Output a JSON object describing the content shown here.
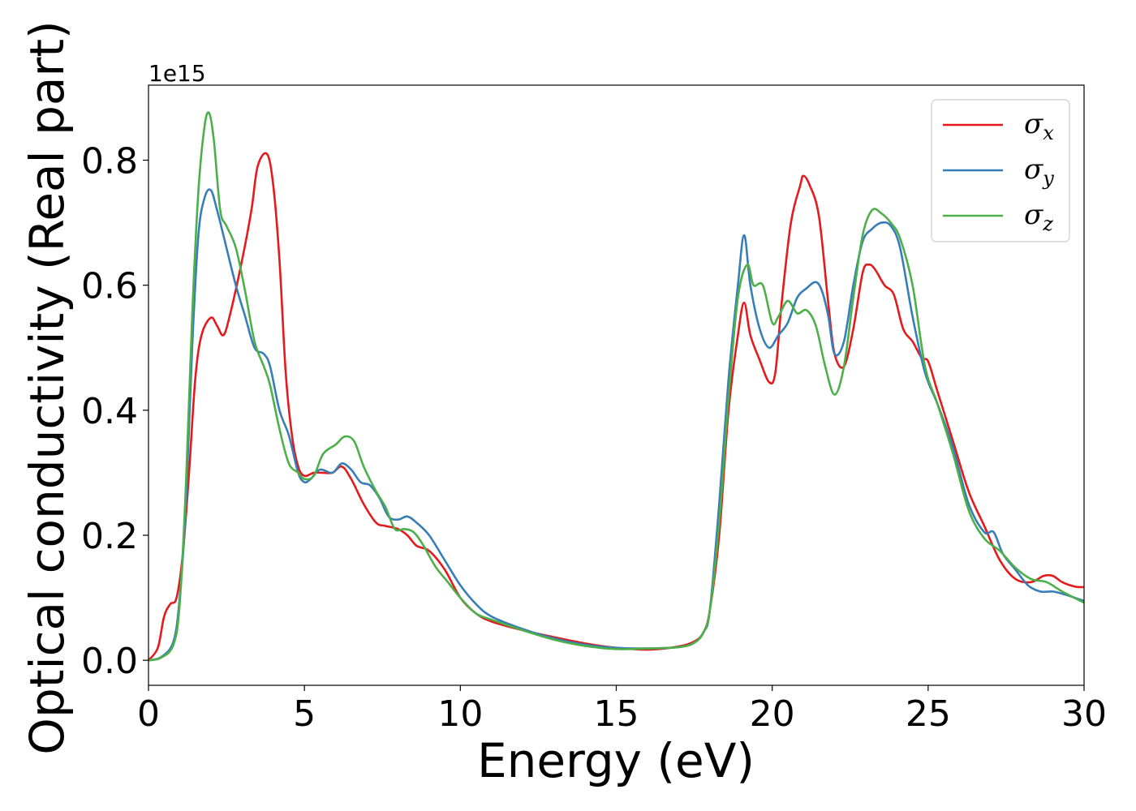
{
  "chart_data": {
    "type": "line",
    "title": "",
    "xlabel": "Energy (eV)",
    "ylabel": "Optical conductivity (Real part)",
    "y_offset_label": "1e15",
    "xlim": [
      0,
      30
    ],
    "ylim": [
      -0.04,
      0.92
    ],
    "x_ticks": [
      0,
      5,
      10,
      15,
      20,
      25,
      30
    ],
    "x_tick_labels": [
      "0",
      "5",
      "10",
      "15",
      "20",
      "25",
      "30"
    ],
    "y_ticks": [
      0.0,
      0.2,
      0.4,
      0.6,
      0.8
    ],
    "y_tick_labels": [
      "0.0",
      "0.2",
      "0.4",
      "0.6",
      "0.8"
    ],
    "grid": false,
    "legend_position": "top-right",
    "series": [
      {
        "name": "σx",
        "symbol": "σ",
        "subscript": "x",
        "color": "#e41a1c",
        "points": [
          [
            0,
            0
          ],
          [
            0.3,
            0.02
          ],
          [
            0.5,
            0.07
          ],
          [
            0.7,
            0.09
          ],
          [
            0.9,
            0.1
          ],
          [
            1.1,
            0.17
          ],
          [
            1.3,
            0.3
          ],
          [
            1.5,
            0.45
          ],
          [
            1.7,
            0.52
          ],
          [
            2.0,
            0.548
          ],
          [
            2.2,
            0.535
          ],
          [
            2.4,
            0.52
          ],
          [
            2.6,
            0.55
          ],
          [
            3.0,
            0.64
          ],
          [
            3.3,
            0.72
          ],
          [
            3.5,
            0.79
          ],
          [
            3.8,
            0.81
          ],
          [
            4.0,
            0.76
          ],
          [
            4.2,
            0.64
          ],
          [
            4.4,
            0.46
          ],
          [
            4.6,
            0.36
          ],
          [
            4.8,
            0.31
          ],
          [
            5.0,
            0.295
          ],
          [
            5.3,
            0.3
          ],
          [
            5.6,
            0.3
          ],
          [
            5.9,
            0.3
          ],
          [
            6.2,
            0.31
          ],
          [
            6.5,
            0.29
          ],
          [
            6.9,
            0.25
          ],
          [
            7.3,
            0.22
          ],
          [
            7.6,
            0.215
          ],
          [
            8.0,
            0.21
          ],
          [
            8.3,
            0.2
          ],
          [
            8.6,
            0.183
          ],
          [
            9.0,
            0.175
          ],
          [
            9.5,
            0.145
          ],
          [
            10.0,
            0.1
          ],
          [
            10.5,
            0.075
          ],
          [
            11.0,
            0.062
          ],
          [
            12.0,
            0.048
          ],
          [
            13.0,
            0.037
          ],
          [
            14.0,
            0.027
          ],
          [
            15.0,
            0.02
          ],
          [
            16.0,
            0.017
          ],
          [
            17.0,
            0.022
          ],
          [
            17.5,
            0.03
          ],
          [
            17.8,
            0.045
          ],
          [
            18.0,
            0.08
          ],
          [
            18.3,
            0.2
          ],
          [
            18.6,
            0.4
          ],
          [
            18.9,
            0.52
          ],
          [
            19.1,
            0.572
          ],
          [
            19.3,
            0.52
          ],
          [
            19.6,
            0.48
          ],
          [
            19.9,
            0.445
          ],
          [
            20.1,
            0.46
          ],
          [
            20.3,
            0.57
          ],
          [
            20.6,
            0.7
          ],
          [
            20.9,
            0.76
          ],
          [
            21.0,
            0.775
          ],
          [
            21.2,
            0.76
          ],
          [
            21.5,
            0.71
          ],
          [
            21.8,
            0.57
          ],
          [
            22.0,
            0.49
          ],
          [
            22.3,
            0.47
          ],
          [
            22.6,
            0.53
          ],
          [
            22.9,
            0.62
          ],
          [
            23.1,
            0.633
          ],
          [
            23.3,
            0.625
          ],
          [
            23.6,
            0.6
          ],
          [
            23.9,
            0.585
          ],
          [
            24.2,
            0.53
          ],
          [
            24.5,
            0.51
          ],
          [
            24.8,
            0.483
          ],
          [
            25.0,
            0.478
          ],
          [
            25.3,
            0.43
          ],
          [
            25.8,
            0.35
          ],
          [
            26.3,
            0.27
          ],
          [
            26.8,
            0.215
          ],
          [
            27.3,
            0.16
          ],
          [
            27.8,
            0.13
          ],
          [
            28.3,
            0.125
          ],
          [
            28.7,
            0.135
          ],
          [
            29.0,
            0.135
          ],
          [
            29.3,
            0.125
          ],
          [
            29.7,
            0.118
          ],
          [
            30,
            0.117
          ]
        ]
      },
      {
        "name": "σy",
        "symbol": "σ",
        "subscript": "y",
        "color": "#377eb8",
        "points": [
          [
            0,
            0
          ],
          [
            0.4,
            0.005
          ],
          [
            0.8,
            0.03
          ],
          [
            1.0,
            0.1
          ],
          [
            1.2,
            0.25
          ],
          [
            1.4,
            0.5
          ],
          [
            1.6,
            0.68
          ],
          [
            1.8,
            0.74
          ],
          [
            2.0,
            0.752
          ],
          [
            2.2,
            0.72
          ],
          [
            2.5,
            0.66
          ],
          [
            2.8,
            0.6
          ],
          [
            3.1,
            0.55
          ],
          [
            3.4,
            0.5
          ],
          [
            3.7,
            0.49
          ],
          [
            3.9,
            0.47
          ],
          [
            4.2,
            0.4
          ],
          [
            4.5,
            0.36
          ],
          [
            4.8,
            0.3
          ],
          [
            5.0,
            0.285
          ],
          [
            5.2,
            0.29
          ],
          [
            5.5,
            0.305
          ],
          [
            5.9,
            0.3
          ],
          [
            6.2,
            0.315
          ],
          [
            6.5,
            0.305
          ],
          [
            6.8,
            0.285
          ],
          [
            7.1,
            0.28
          ],
          [
            7.4,
            0.26
          ],
          [
            7.7,
            0.23
          ],
          [
            8.0,
            0.225
          ],
          [
            8.3,
            0.23
          ],
          [
            8.6,
            0.22
          ],
          [
            9.0,
            0.2
          ],
          [
            9.5,
            0.16
          ],
          [
            10.0,
            0.12
          ],
          [
            10.5,
            0.09
          ],
          [
            11.0,
            0.07
          ],
          [
            12.0,
            0.05
          ],
          [
            13.0,
            0.035
          ],
          [
            14.0,
            0.025
          ],
          [
            15.0,
            0.02
          ],
          [
            16.0,
            0.019
          ],
          [
            17.0,
            0.021
          ],
          [
            17.5,
            0.028
          ],
          [
            17.8,
            0.045
          ],
          [
            18.0,
            0.08
          ],
          [
            18.3,
            0.25
          ],
          [
            18.6,
            0.45
          ],
          [
            18.9,
            0.6
          ],
          [
            19.1,
            0.68
          ],
          [
            19.3,
            0.6
          ],
          [
            19.6,
            0.53
          ],
          [
            19.9,
            0.5
          ],
          [
            20.2,
            0.52
          ],
          [
            20.5,
            0.54
          ],
          [
            20.8,
            0.58
          ],
          [
            21.1,
            0.595
          ],
          [
            21.4,
            0.605
          ],
          [
            21.6,
            0.59
          ],
          [
            21.8,
            0.55
          ],
          [
            22.0,
            0.49
          ],
          [
            22.3,
            0.51
          ],
          [
            22.6,
            0.6
          ],
          [
            22.9,
            0.67
          ],
          [
            23.2,
            0.69
          ],
          [
            23.5,
            0.7
          ],
          [
            23.8,
            0.695
          ],
          [
            24.1,
            0.66
          ],
          [
            24.5,
            0.55
          ],
          [
            24.9,
            0.46
          ],
          [
            25.3,
            0.41
          ],
          [
            25.8,
            0.34
          ],
          [
            26.3,
            0.25
          ],
          [
            26.8,
            0.205
          ],
          [
            27.1,
            0.205
          ],
          [
            27.4,
            0.17
          ],
          [
            27.8,
            0.145
          ],
          [
            28.2,
            0.12
          ],
          [
            28.6,
            0.11
          ],
          [
            29.0,
            0.11
          ],
          [
            29.4,
            0.105
          ],
          [
            30,
            0.095
          ]
        ]
      },
      {
        "name": "σz",
        "symbol": "σ",
        "subscript": "z",
        "color": "#4daf4a",
        "points": [
          [
            0,
            0
          ],
          [
            0.4,
            0.004
          ],
          [
            0.8,
            0.025
          ],
          [
            1.0,
            0.09
          ],
          [
            1.2,
            0.28
          ],
          [
            1.4,
            0.55
          ],
          [
            1.6,
            0.75
          ],
          [
            1.8,
            0.855
          ],
          [
            1.95,
            0.875
          ],
          [
            2.1,
            0.83
          ],
          [
            2.3,
            0.72
          ],
          [
            2.5,
            0.695
          ],
          [
            2.8,
            0.66
          ],
          [
            3.1,
            0.59
          ],
          [
            3.4,
            0.51
          ],
          [
            3.7,
            0.47
          ],
          [
            3.9,
            0.44
          ],
          [
            4.2,
            0.37
          ],
          [
            4.5,
            0.315
          ],
          [
            4.8,
            0.3
          ],
          [
            5.0,
            0.29
          ],
          [
            5.3,
            0.295
          ],
          [
            5.6,
            0.33
          ],
          [
            6.0,
            0.345
          ],
          [
            6.3,
            0.358
          ],
          [
            6.6,
            0.35
          ],
          [
            6.9,
            0.31
          ],
          [
            7.3,
            0.27
          ],
          [
            7.6,
            0.245
          ],
          [
            7.9,
            0.21
          ],
          [
            8.2,
            0.21
          ],
          [
            8.5,
            0.205
          ],
          [
            8.8,
            0.185
          ],
          [
            9.2,
            0.15
          ],
          [
            9.6,
            0.125
          ],
          [
            10.0,
            0.1
          ],
          [
            10.5,
            0.075
          ],
          [
            11.0,
            0.065
          ],
          [
            12.0,
            0.048
          ],
          [
            13.0,
            0.033
          ],
          [
            14.0,
            0.023
          ],
          [
            15.0,
            0.018
          ],
          [
            16.0,
            0.019
          ],
          [
            17.0,
            0.021
          ],
          [
            17.5,
            0.028
          ],
          [
            17.8,
            0.045
          ],
          [
            18.0,
            0.08
          ],
          [
            18.3,
            0.22
          ],
          [
            18.6,
            0.42
          ],
          [
            18.9,
            0.58
          ],
          [
            19.2,
            0.633
          ],
          [
            19.4,
            0.6
          ],
          [
            19.7,
            0.6
          ],
          [
            20.0,
            0.54
          ],
          [
            20.2,
            0.55
          ],
          [
            20.5,
            0.575
          ],
          [
            20.8,
            0.555
          ],
          [
            21.1,
            0.56
          ],
          [
            21.4,
            0.535
          ],
          [
            21.7,
            0.47
          ],
          [
            22.0,
            0.425
          ],
          [
            22.3,
            0.47
          ],
          [
            22.6,
            0.58
          ],
          [
            22.9,
            0.68
          ],
          [
            23.2,
            0.72
          ],
          [
            23.5,
            0.715
          ],
          [
            23.8,
            0.7
          ],
          [
            24.1,
            0.675
          ],
          [
            24.5,
            0.6
          ],
          [
            24.9,
            0.47
          ],
          [
            25.3,
            0.41
          ],
          [
            25.8,
            0.33
          ],
          [
            26.3,
            0.24
          ],
          [
            26.8,
            0.195
          ],
          [
            27.3,
            0.175
          ],
          [
            27.8,
            0.148
          ],
          [
            28.3,
            0.13
          ],
          [
            28.8,
            0.125
          ],
          [
            29.3,
            0.11
          ],
          [
            30,
            0.092
          ]
        ]
      }
    ]
  }
}
